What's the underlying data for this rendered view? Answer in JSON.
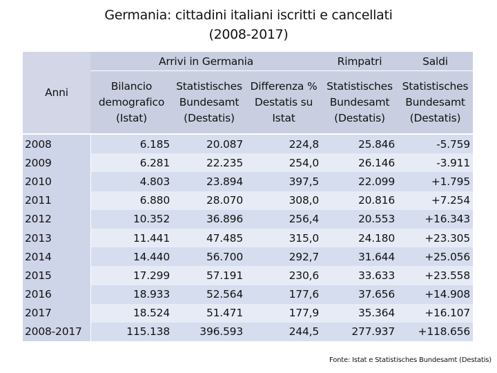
{
  "title": {
    "line1": "Germania: cittadini italiani iscritti e cancellati",
    "line2": "(2008-2017)"
  },
  "table": {
    "group_headers": {
      "arrivi": "Arrivi in Germania",
      "rimpatri": "Rimpatri",
      "saldi": "Saldi"
    },
    "anni_label": "Anni",
    "columns": [
      {
        "l1": "Bilancio",
        "l2": "demografico",
        "l3": "(Istat)"
      },
      {
        "l1": "Statistisches",
        "l2": "Bundesamt",
        "l3": "(Destatis)"
      },
      {
        "l1": "Differenza %",
        "l2": "Destatis su",
        "l3": "Istat"
      },
      {
        "l1": "Statistisches",
        "l2": "Bundesamt",
        "l3": "(Destatis)"
      },
      {
        "l1": "Statistisches",
        "l2": "Bundesamt",
        "l3": "(Destatis)"
      }
    ],
    "rows": [
      {
        "year": "2008",
        "values": [
          "6.185",
          "20.087",
          "224,8",
          "25.846",
          "-5.759"
        ]
      },
      {
        "year": "2009",
        "values": [
          "6.281",
          "22.235",
          "254,0",
          "26.146",
          "-3.911"
        ]
      },
      {
        "year": "2010",
        "values": [
          "4.803",
          "23.894",
          "397,5",
          "22.099",
          "+1.795"
        ]
      },
      {
        "year": "2011",
        "values": [
          "6.880",
          "28.070",
          "308,0",
          "20.816",
          "+7.254"
        ]
      },
      {
        "year": "2012",
        "values": [
          "10.352",
          "36.896",
          "256,4",
          "20.553",
          "+16.343"
        ]
      },
      {
        "year": "2013",
        "values": [
          "11.441",
          "47.485",
          "315,0",
          "24.180",
          "+23.305"
        ]
      },
      {
        "year": "2014",
        "values": [
          "14.440",
          "56.700",
          "292,7",
          "31.644",
          "+25.056"
        ]
      },
      {
        "year": "2015",
        "values": [
          "17.299",
          "57.191",
          "230,6",
          "33.633",
          "+23.558"
        ]
      },
      {
        "year": "2016",
        "values": [
          "18.933",
          "52.564",
          "177,6",
          "37.656",
          "+14.908"
        ]
      },
      {
        "year": "2017",
        "values": [
          "18.524",
          "51.471",
          "177,9",
          "35.364",
          "+16.107"
        ]
      },
      {
        "year": "2008-2017",
        "values": [
          "115.138",
          "396.593",
          "244,5",
          "277.937",
          "+118.656"
        ]
      }
    ]
  },
  "footer": "Fonte: Istat e Statistisches Bundesamt (Destatis)",
  "colors": {
    "header_bg": "#c9cfe1",
    "row_dark": "#d6ddee",
    "row_light": "#e6ebf6"
  }
}
